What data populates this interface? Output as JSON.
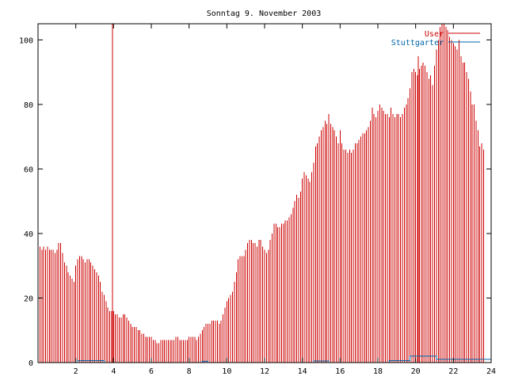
{
  "chart_data": {
    "type": "bar",
    "title": "Sonntag 9. November 2003",
    "xlabel": "",
    "ylabel": "",
    "xlim": [
      0,
      24
    ],
    "ylim": [
      0,
      105
    ],
    "x_ticks": [
      "2",
      "4",
      "6",
      "8",
      "10",
      "12",
      "14",
      "16",
      "18",
      "20",
      "22",
      "24"
    ],
    "y_ticks": [
      "0",
      "20",
      "40",
      "60",
      "80",
      "100"
    ],
    "grid": false,
    "legend_position": "top-right",
    "series": [
      {
        "name": "User",
        "color": "#cc0000",
        "step_hours": 0.1,
        "values": [
          36,
          36,
          35,
          36,
          35,
          36,
          35,
          35,
          35,
          34,
          35,
          37,
          37,
          34,
          31,
          30,
          28,
          27,
          26,
          25,
          30,
          32,
          33,
          33,
          32,
          31,
          32,
          32,
          31,
          30,
          29,
          28,
          27,
          25,
          22,
          21,
          19,
          17,
          16,
          16,
          16,
          15,
          15,
          14,
          14,
          15,
          15,
          14,
          13,
          12,
          11,
          11,
          11,
          10,
          10,
          9,
          9,
          8,
          8,
          8,
          8,
          7,
          7,
          6,
          6,
          7,
          7,
          7,
          7,
          7,
          7,
          7,
          7,
          8,
          8,
          7,
          7,
          7,
          7,
          7,
          8,
          8,
          8,
          8,
          7,
          8,
          9,
          10,
          11,
          12,
          12,
          12,
          13,
          13,
          13,
          13,
          12,
          13,
          15,
          17,
          19,
          20,
          21,
          22,
          25,
          28,
          32,
          33,
          33,
          33,
          35,
          37,
          38,
          38,
          37,
          37,
          36,
          38,
          38,
          36,
          35,
          34,
          35,
          38,
          40,
          43,
          43,
          42,
          42,
          43,
          43,
          44,
          44,
          45,
          46,
          48,
          50,
          52,
          51,
          53,
          57,
          59,
          58,
          57,
          56,
          59,
          62,
          67,
          68,
          70,
          72,
          73,
          75,
          74,
          77,
          74,
          73,
          72,
          70,
          68,
          72,
          68,
          66,
          66,
          65,
          66,
          65,
          66,
          68,
          68,
          69,
          70,
          71,
          71,
          72,
          73,
          75,
          79,
          77,
          76,
          78,
          80,
          79,
          78,
          77,
          77,
          76,
          79,
          77,
          76,
          77,
          77,
          76,
          77,
          79,
          80,
          82,
          85,
          90,
          91,
          90,
          89,
          91,
          92,
          93,
          92,
          90,
          88,
          89,
          86,
          92,
          97,
          100,
          104,
          105,
          105,
          104,
          103,
          101,
          100,
          99,
          98,
          97,
          100,
          95,
          93,
          93,
          90,
          88,
          84,
          80,
          80,
          75,
          72,
          67,
          68,
          66
        ]
      },
      {
        "name": "Stuttgarter",
        "color": "#0066aa",
        "segments": [
          [
            0,
            0
          ],
          [
            2.1,
            0
          ],
          [
            2.1,
            0.6
          ],
          [
            3.5,
            0.6
          ],
          [
            3.5,
            0
          ],
          [
            8.7,
            0
          ],
          [
            8.7,
            0.4
          ],
          [
            9.0,
            0.4
          ],
          [
            9.0,
            0
          ],
          [
            14.6,
            0
          ],
          [
            14.6,
            0.5
          ],
          [
            15.4,
            0.5
          ],
          [
            15.4,
            0
          ],
          [
            18.6,
            0
          ],
          [
            18.6,
            0.6
          ],
          [
            19.7,
            0.6
          ],
          [
            19.7,
            2
          ],
          [
            21.1,
            2
          ],
          [
            21.1,
            1
          ],
          [
            24,
            1
          ]
        ]
      }
    ],
    "spikes": [
      {
        "x": 3.95,
        "y": 105
      },
      {
        "x": 12.0,
        "y": 35
      },
      {
        "x": 20.15,
        "y": 95
      }
    ]
  }
}
